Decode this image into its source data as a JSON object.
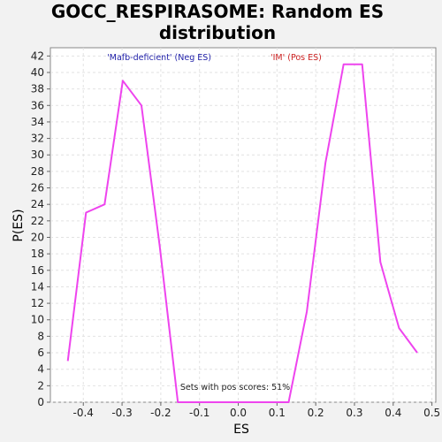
{
  "chart_data": {
    "type": "line",
    "title_line1": "GOCC_RESPIRASOME: Random ES",
    "title_line2": "distribution",
    "xlabel": "ES",
    "ylabel": "P(ES)",
    "xlim": [
      -0.485,
      0.51
    ],
    "ylim": [
      0,
      43
    ],
    "xticks": [
      -0.4,
      -0.3,
      -0.2,
      -0.1,
      0.0,
      0.1,
      0.2,
      0.3,
      0.4,
      0.5
    ],
    "xtick_labels": [
      "-0.4",
      "-0.3",
      "-0.2",
      "-0.1",
      "0.0",
      "0.1",
      "0.2",
      "0.3",
      "0.4",
      "0.5"
    ],
    "yticks": [
      0,
      2,
      4,
      6,
      8,
      10,
      12,
      14,
      16,
      18,
      20,
      22,
      24,
      26,
      28,
      30,
      32,
      34,
      36,
      38,
      40,
      42
    ],
    "ytick_labels": [
      "0",
      "2",
      "4",
      "6",
      "8",
      "10",
      "12",
      "14",
      "16",
      "18",
      "20",
      "22",
      "24",
      "26",
      "28",
      "30",
      "32",
      "34",
      "36",
      "38",
      "40",
      "42"
    ],
    "grid": true,
    "legend": {
      "placement": "top-center",
      "neg_label": "'Mafb-deficient' (Neg ES)",
      "pos_label": "'IM' (Pos ES)",
      "neg_color": "#2222aa",
      "pos_color": "#cc2222"
    },
    "annotation": "Sets with pos scores: 51%",
    "series": [
      {
        "color": "#ee44ee",
        "x": [
          -0.44,
          -0.393,
          -0.345,
          -0.298,
          -0.25,
          -0.203,
          -0.156,
          -0.108,
          -0.061,
          -0.013,
          0.034,
          0.082,
          0.13,
          0.177,
          0.225,
          0.272,
          0.32,
          0.367,
          0.415,
          0.462
        ],
        "y": [
          5,
          23,
          24,
          39,
          36,
          19,
          0,
          0,
          0,
          0,
          0,
          0,
          0,
          11,
          29,
          41,
          41,
          17,
          9,
          6
        ]
      }
    ]
  }
}
